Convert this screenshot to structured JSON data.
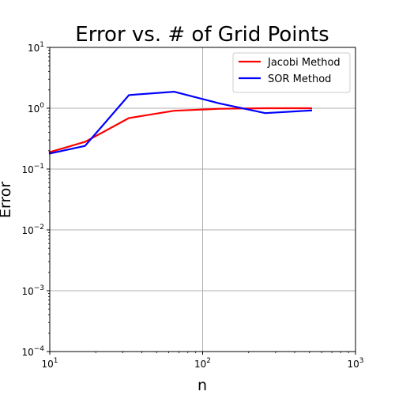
{
  "chart_data": {
    "type": "line",
    "title": "Error vs. # of Grid Points",
    "xlabel": "n",
    "ylabel": "Error",
    "xscale": "log",
    "yscale": "log",
    "xlim": [
      10,
      1000
    ],
    "ylim": [
      0.0001,
      10
    ],
    "grid": true,
    "legend_position": "upper right",
    "x_ticks": [
      {
        "base": "10",
        "exp": "1",
        "value": 10
      },
      {
        "base": "10",
        "exp": "2",
        "value": 100
      },
      {
        "base": "10",
        "exp": "3",
        "value": 1000
      }
    ],
    "y_ticks": [
      {
        "base": "10",
        "exp": "1",
        "value": 10
      },
      {
        "base": "10",
        "exp": "0",
        "value": 1
      },
      {
        "base": "10",
        "exp": "−1",
        "value": 0.1
      },
      {
        "base": "10",
        "exp": "−2",
        "value": 0.01
      },
      {
        "base": "10",
        "exp": "−3",
        "value": 0.001
      },
      {
        "base": "10",
        "exp": "−4",
        "value": 0.0001
      }
    ],
    "series": [
      {
        "name": "Jacobi Method",
        "color": "#ff0000",
        "x": [
          10,
          17,
          33,
          65,
          129,
          257,
          513
        ],
        "y": [
          0.19,
          0.28,
          0.69,
          0.91,
          0.98,
          1.0,
          1.0
        ]
      },
      {
        "name": "SOR Method",
        "color": "#0000ff",
        "x": [
          10,
          17,
          33,
          65,
          129,
          257,
          513
        ],
        "y": [
          0.18,
          0.24,
          1.65,
          1.87,
          1.2,
          0.83,
          0.92
        ]
      }
    ]
  }
}
